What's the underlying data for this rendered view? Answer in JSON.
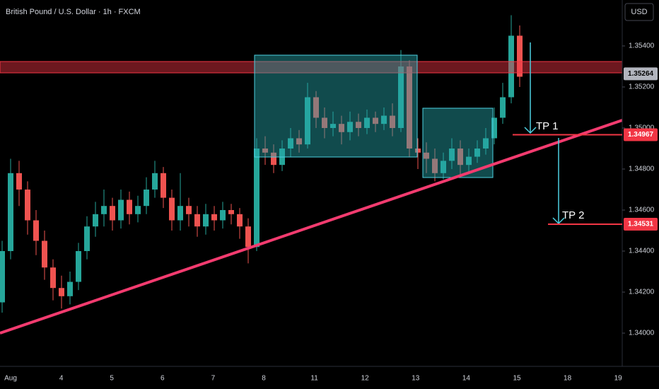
{
  "chart_data": {
    "type": "candlestick",
    "title": "British Pound / U.S. Dollar · 1h · FXCM",
    "currency": "USD",
    "categories": [
      "Aug",
      "4",
      "5",
      "6",
      "7",
      "8",
      "11",
      "12",
      "13",
      "14",
      "15",
      "18",
      "19"
    ],
    "ylim": [
      1.33838,
      1.35624
    ],
    "yticks": [
      {
        "value": 1.34,
        "label": "1.34000"
      },
      {
        "value": 1.342,
        "label": "1.34200"
      },
      {
        "value": 1.344,
        "label": "1.34400"
      },
      {
        "value": 1.346,
        "label": "1.34600"
      },
      {
        "value": 1.348,
        "label": "1.34800"
      },
      {
        "value": 1.35,
        "label": "1.35000"
      },
      {
        "value": 1.352,
        "label": "1.35200"
      },
      {
        "value": 1.354,
        "label": "1.35400"
      }
    ],
    "up_color": "#26a69a",
    "down_color": "#ef5350",
    "open": [
      1.3415,
      1.344,
      1.3478,
      1.347,
      1.3455,
      1.3445,
      1.3432,
      1.3422,
      1.3418,
      1.3425,
      1.344,
      1.3452,
      1.3458,
      1.3462,
      1.3455,
      1.3465,
      1.3458,
      1.3462,
      1.347,
      1.3478,
      1.3466,
      1.3455,
      1.3462,
      1.3458,
      1.3452,
      1.3458,
      1.3455,
      1.346,
      1.3458,
      1.3452,
      1.3442,
      1.349,
      1.3488,
      1.3482,
      1.349,
      1.3495,
      1.3492,
      1.3515,
      1.3505,
      1.35,
      1.3502,
      1.3498,
      1.3503,
      1.35,
      1.3505,
      1.3502,
      1.3506,
      1.35,
      1.353,
      1.349,
      1.3488,
      1.3485,
      1.3478,
      1.3484,
      1.349,
      1.3482,
      1.3486,
      1.349,
      1.3495,
      1.3505,
      1.3515,
      1.3545
    ],
    "high": [
      1.3445,
      1.3485,
      1.3484,
      1.3474,
      1.346,
      1.345,
      1.3436,
      1.3428,
      1.343,
      1.3444,
      1.3457,
      1.3464,
      1.347,
      1.3466,
      1.347,
      1.3469,
      1.3467,
      1.3476,
      1.3484,
      1.3481,
      1.347,
      1.3478,
      1.3466,
      1.3462,
      1.3463,
      1.3462,
      1.3464,
      1.3463,
      1.3461,
      1.3456,
      1.3495,
      1.3496,
      1.3492,
      1.3494,
      1.35,
      1.3499,
      1.3522,
      1.3518,
      1.351,
      1.3508,
      1.3506,
      1.3508,
      1.3507,
      1.3509,
      1.3508,
      1.351,
      1.3512,
      1.3538,
      1.3533,
      1.3495,
      1.3493,
      1.349,
      1.3488,
      1.3495,
      1.3494,
      1.349,
      1.3494,
      1.35,
      1.351,
      1.3522,
      1.3555,
      1.355
    ],
    "low": [
      1.341,
      1.3436,
      1.3462,
      1.3448,
      1.3438,
      1.3426,
      1.3416,
      1.3412,
      1.3414,
      1.3421,
      1.3436,
      1.3447,
      1.3452,
      1.345,
      1.3451,
      1.3453,
      1.3454,
      1.3458,
      1.3466,
      1.3461,
      1.345,
      1.345,
      1.3452,
      1.3447,
      1.3448,
      1.345,
      1.3451,
      1.3453,
      1.3446,
      1.3434,
      1.344,
      1.3482,
      1.3478,
      1.3479,
      1.3486,
      1.3488,
      1.349,
      1.35,
      1.3495,
      1.3496,
      1.3492,
      1.3494,
      1.3496,
      1.3497,
      1.3498,
      1.3499,
      1.3496,
      1.3498,
      1.3486,
      1.348,
      1.3478,
      1.3474,
      1.3475,
      1.348,
      1.3477,
      1.3478,
      1.3483,
      1.3487,
      1.3492,
      1.3502,
      1.3512,
      1.352
    ],
    "close": [
      1.344,
      1.3478,
      1.347,
      1.3455,
      1.3445,
      1.3432,
      1.3422,
      1.3418,
      1.3425,
      1.344,
      1.3452,
      1.3458,
      1.3462,
      1.3455,
      1.3465,
      1.3458,
      1.3462,
      1.347,
      1.3478,
      1.3466,
      1.3455,
      1.3462,
      1.3458,
      1.3452,
      1.3458,
      1.3455,
      1.346,
      1.3458,
      1.3452,
      1.3442,
      1.349,
      1.3488,
      1.3482,
      1.349,
      1.3495,
      1.3492,
      1.3515,
      1.3505,
      1.35,
      1.3502,
      1.3498,
      1.3503,
      1.35,
      1.3505,
      1.3502,
      1.3506,
      1.35,
      1.353,
      1.349,
      1.3488,
      1.3485,
      1.3478,
      1.3484,
      1.349,
      1.3482,
      1.3486,
      1.349,
      1.3495,
      1.3505,
      1.3515,
      1.3545,
      1.3525
    ],
    "price_labels": [
      {
        "value": 1.35264,
        "color": "#b2b5be"
      },
      {
        "value": 1.34967,
        "color": "#f23645"
      },
      {
        "value": 1.34531,
        "color": "#f23645"
      }
    ],
    "annotations": [
      "TP 1",
      "TP 2"
    ]
  }
}
